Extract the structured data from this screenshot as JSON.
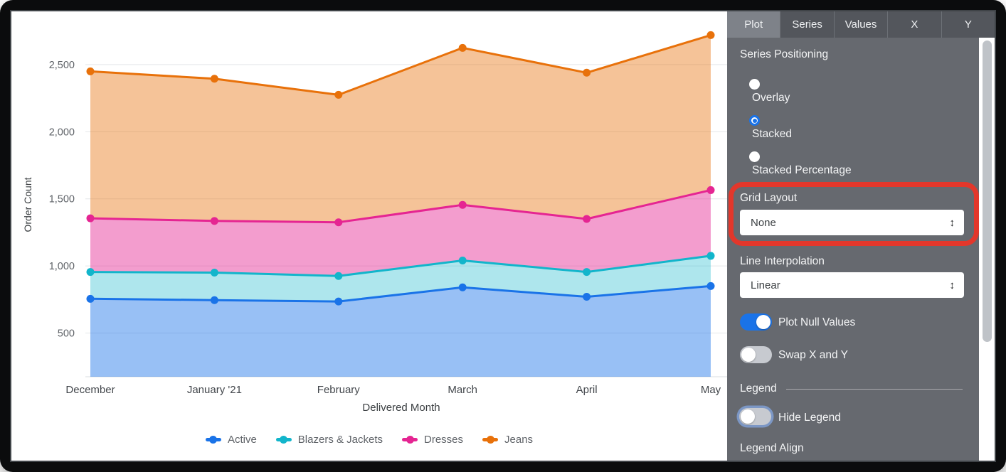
{
  "colors": {
    "accent": "#1A73E8",
    "highlight_red": "#E3372B"
  },
  "icons": {
    "select_stepper": "↕"
  },
  "panel": {
    "tabs": [
      {
        "label": "Plot",
        "active": true
      },
      {
        "label": "Series",
        "active": false
      },
      {
        "label": "Values",
        "active": false
      },
      {
        "label": "X",
        "active": false
      },
      {
        "label": "Y",
        "active": false
      }
    ],
    "series_positioning": {
      "label": "Series Positioning",
      "options": [
        {
          "label": "Overlay",
          "selected": false
        },
        {
          "label": "Stacked",
          "selected": true
        },
        {
          "label": "Stacked Percentage",
          "selected": false
        }
      ]
    },
    "grid_layout": {
      "label": "Grid Layout",
      "value": "None",
      "highlighted": true
    },
    "line_interpolation": {
      "label": "Line Interpolation",
      "value": "Linear"
    },
    "toggles": [
      {
        "label": "Plot Null Values",
        "on": true,
        "focused": false
      },
      {
        "label": "Swap X and Y",
        "on": false,
        "focused": false
      }
    ],
    "legend_section": {
      "header": "Legend",
      "hide_legend": {
        "label": "Hide Legend",
        "on": false,
        "focused": true
      },
      "legend_align_label": "Legend Align"
    }
  },
  "chart_data": {
    "type": "area",
    "stacked": true,
    "title": "",
    "xlabel": "Delivered Month",
    "ylabel": "Order Count",
    "categories": [
      "December",
      "January '21",
      "February",
      "March",
      "April",
      "May"
    ],
    "series": [
      {
        "name": "Active",
        "color": "#1A73E8",
        "values": [
          755,
          745,
          735,
          840,
          770,
          850
        ]
      },
      {
        "name": "Blazers & Jackets",
        "color": "#12B5CB",
        "values": [
          200,
          205,
          190,
          200,
          185,
          225
        ]
      },
      {
        "name": "Dresses",
        "color": "#E52592",
        "values": [
          400,
          385,
          400,
          415,
          395,
          490
        ]
      },
      {
        "name": "Jeans",
        "color": "#E8710A",
        "values": [
          1095,
          1060,
          950,
          1170,
          1090,
          1155
        ]
      }
    ],
    "stacked_totals": [
      2450,
      2395,
      2275,
      2625,
      2440,
      2720
    ],
    "yticks": [
      500,
      1000,
      1500,
      2000,
      2500
    ],
    "ylim": [
      174,
      2844
    ],
    "grid": "horizontal",
    "legend_position": "bottom"
  }
}
